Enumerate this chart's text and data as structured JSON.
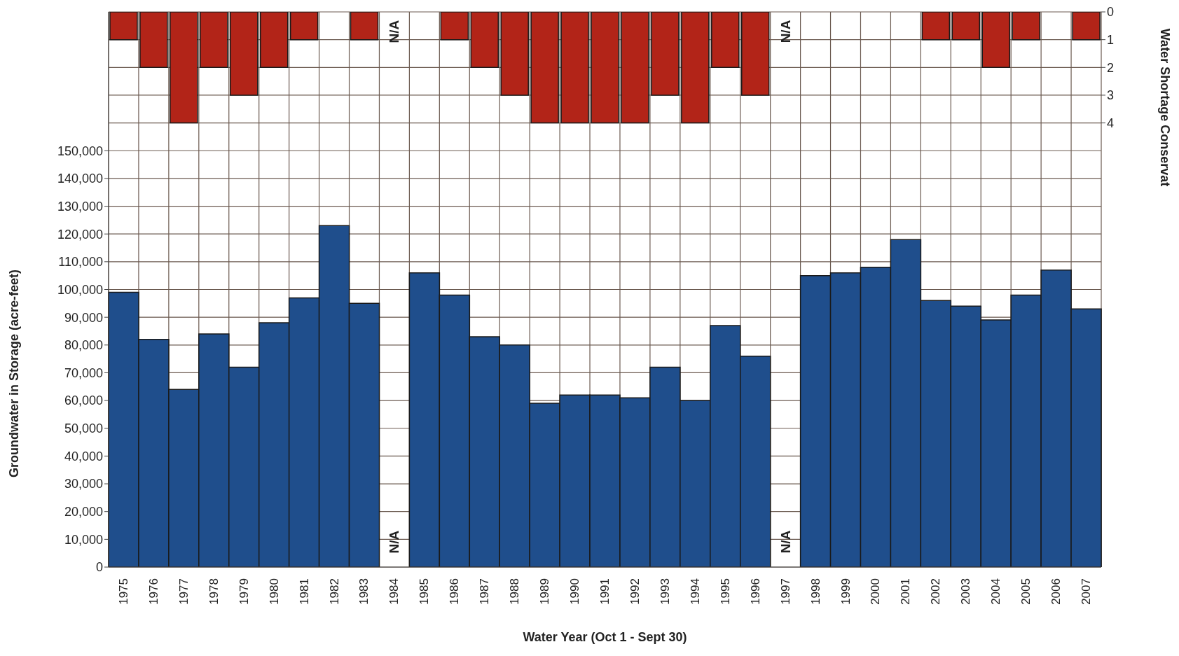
{
  "chart_data": {
    "type": "bar",
    "xlabel": "Water Year (Oct 1 - Sept 30)",
    "ylabel": "Groundwater in Storage (acre-feet)",
    "y2label": "Water Shortage Conservat",
    "categories": [
      "1975",
      "1976",
      "1977",
      "1978",
      "1979",
      "1980",
      "1981",
      "1982",
      "1983",
      "1984",
      "1985",
      "1986",
      "1987",
      "1988",
      "1989",
      "1990",
      "1991",
      "1992",
      "1993",
      "1994",
      "1995",
      "1996",
      "1997",
      "1998",
      "1999",
      "2000",
      "2001",
      "2002",
      "2003",
      "2004",
      "2005",
      "2006",
      "2007"
    ],
    "series": [
      {
        "color": "#1f4e8c",
        "values": [
          99000,
          82000,
          64000,
          84000,
          72000,
          88000,
          97000,
          123000,
          95000,
          null,
          106000,
          98000,
          83000,
          80000,
          59000,
          62000,
          62000,
          61000,
          72000,
          60000,
          87000,
          76000,
          null,
          105000,
          106000,
          108000,
          118000,
          96000,
          94000,
          89000,
          98000,
          107000,
          93000
        ]
      },
      {
        "axis": "y2",
        "color": "#b22418",
        "values": [
          1,
          2,
          4,
          2,
          3,
          2,
          1,
          0,
          1,
          null,
          0,
          1,
          2,
          3,
          4,
          4,
          4,
          4,
          3,
          4,
          2,
          3,
          null,
          0,
          0,
          0,
          0,
          1,
          1,
          2,
          1,
          0,
          1
        ]
      }
    ],
    "ylim": [
      0,
      200000
    ],
    "yticks": [
      0,
      {
        "value": 10000,
        "label": "10,000"
      },
      {
        "value": 20000,
        "label": "20,000"
      },
      {
        "value": 30000,
        "label": "30,000"
      },
      {
        "value": 40000,
        "label": "40,000"
      },
      {
        "value": 50000,
        "label": "50,000"
      },
      {
        "value": 60000,
        "label": "60,000"
      },
      {
        "value": 70000,
        "label": "70,000"
      },
      {
        "value": 80000,
        "label": "80,000"
      },
      {
        "value": 90000,
        "label": "90,000"
      },
      {
        "value": 100000,
        "label": "100,000"
      },
      {
        "value": 110000,
        "label": "110,000"
      },
      {
        "value": 120000,
        "label": "120,000"
      },
      {
        "value": 130000,
        "label": "130,000"
      },
      {
        "value": 140000,
        "label": "140,000"
      },
      {
        "value": 150000,
        "label": "150,000"
      }
    ],
    "y2lim": [
      20,
      0
    ],
    "y2ticks": [
      0,
      1,
      2,
      3,
      4
    ],
    "grid": true,
    "annotations": [
      "N/A",
      "N/A",
      "N/A",
      "N/A"
    ]
  }
}
